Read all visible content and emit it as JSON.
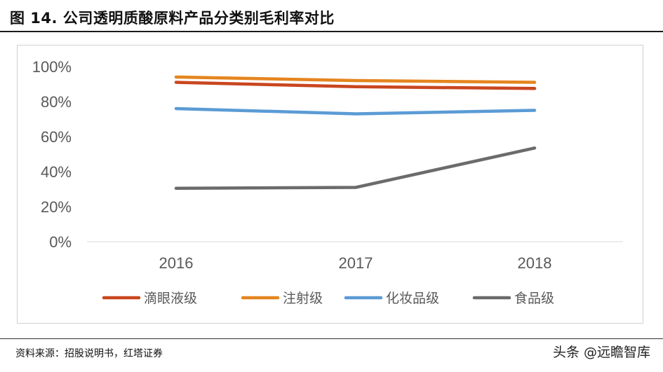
{
  "title": "图 14. 公司透明质酸原料产品分类别毛利率对比",
  "source": "资料来源：招股说明书，红塔证券",
  "watermark": "头条 @远瞻智库",
  "chart_data": {
    "type": "line",
    "x": [
      "2016",
      "2017",
      "2018"
    ],
    "y_ticks": [
      "0%",
      "20%",
      "40%",
      "60%",
      "80%",
      "100%"
    ],
    "ylim": [
      0,
      100
    ],
    "grid": false,
    "legend_position": "bottom",
    "series": [
      {
        "name": "滴眼液级",
        "values": [
          91,
          88.5,
          87.5
        ],
        "color": "#C9461F"
      },
      {
        "name": "注射级",
        "values": [
          94,
          92,
          91
        ],
        "color": "#E5851F"
      },
      {
        "name": "化妆品级",
        "values": [
          76,
          73,
          75
        ],
        "color": "#5B9BD5"
      },
      {
        "name": "食品级",
        "values": [
          30.5,
          31,
          53.5
        ],
        "color": "#6B6B6B"
      }
    ]
  }
}
